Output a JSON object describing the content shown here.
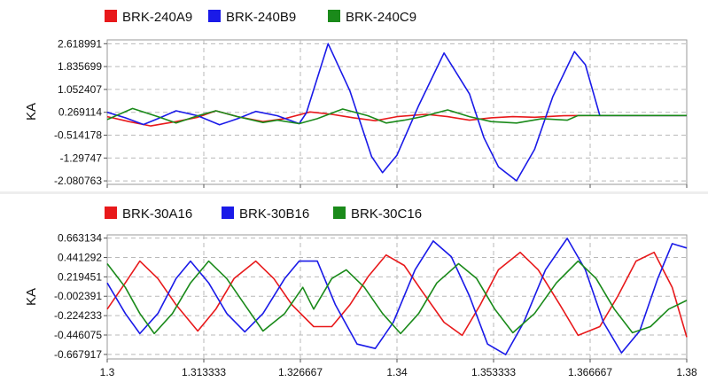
{
  "chart_data": [
    {
      "type": "line",
      "ylabel": "KA",
      "legend_placement": "top-left",
      "grid": true,
      "xlim": [
        1.3,
        1.38
      ],
      "ylim": [
        -2.2,
        2.75
      ],
      "yticks": [
        "2.618991",
        "1.835699",
        "1.052407",
        "0.269114",
        "-0.514178",
        "-1.29747",
        "-2.080763"
      ],
      "ytick_values": [
        2.618991,
        1.835699,
        1.052407,
        0.269114,
        -0.514178,
        -1.29747,
        -2.080763
      ],
      "series": [
        {
          "name": "BRK-240A9",
          "color": "#e8191b",
          "points": [
            [
              1.3,
              0.12
            ],
            [
              1.303,
              -0.05
            ],
            [
              1.306,
              -0.2
            ],
            [
              1.3095,
              -0.05
            ],
            [
              1.3125,
              0.1
            ],
            [
              1.315,
              0.32
            ],
            [
              1.318,
              0.12
            ],
            [
              1.3215,
              -0.05
            ],
            [
              1.3245,
              0.05
            ],
            [
              1.328,
              0.28
            ],
            [
              1.331,
              0.2
            ],
            [
              1.334,
              0.08
            ],
            [
              1.337,
              -0.02
            ],
            [
              1.34,
              0.12
            ],
            [
              1.344,
              0.2
            ],
            [
              1.347,
              0.12
            ],
            [
              1.35,
              0.0
            ],
            [
              1.353,
              0.08
            ],
            [
              1.356,
              0.12
            ],
            [
              1.359,
              0.1
            ],
            [
              1.363,
              0.15
            ],
            [
              1.366,
              0.16
            ],
            [
              1.37,
              0.16
            ],
            [
              1.38,
              0.16
            ]
          ]
        },
        {
          "name": "BRK-240B9",
          "color": "#1a1ae8",
          "points": [
            [
              1.3,
              0.27
            ],
            [
              1.3025,
              0.08
            ],
            [
              1.305,
              -0.15
            ],
            [
              1.307,
              0.05
            ],
            [
              1.3095,
              0.32
            ],
            [
              1.3125,
              0.15
            ],
            [
              1.3155,
              -0.16
            ],
            [
              1.318,
              0.05
            ],
            [
              1.3205,
              0.3
            ],
            [
              1.3235,
              0.15
            ],
            [
              1.3265,
              -0.12
            ],
            [
              1.3275,
              0.25
            ],
            [
              1.3305,
              2.619
            ],
            [
              1.3335,
              1.0
            ],
            [
              1.3365,
              -1.25
            ],
            [
              1.338,
              -1.8
            ],
            [
              1.34,
              -1.2
            ],
            [
              1.343,
              0.5
            ],
            [
              1.3465,
              2.3
            ],
            [
              1.35,
              0.9
            ],
            [
              1.352,
              -0.6
            ],
            [
              1.354,
              -1.6
            ],
            [
              1.3565,
              -2.08
            ],
            [
              1.359,
              -1.0
            ],
            [
              1.3615,
              0.8
            ],
            [
              1.3645,
              2.35
            ],
            [
              1.366,
              1.9
            ],
            [
              1.368,
              0.16
            ],
            [
              1.38,
              0.16
            ]
          ]
        },
        {
          "name": "BRK-240C9",
          "color": "#1a8a1a",
          "points": [
            [
              1.3,
              0.02
            ],
            [
              1.3035,
              0.4
            ],
            [
              1.307,
              0.12
            ],
            [
              1.3095,
              -0.1
            ],
            [
              1.3125,
              0.15
            ],
            [
              1.315,
              0.32
            ],
            [
              1.318,
              0.12
            ],
            [
              1.3215,
              -0.08
            ],
            [
              1.3235,
              0.0
            ],
            [
              1.3265,
              -0.12
            ],
            [
              1.329,
              0.05
            ],
            [
              1.3325,
              0.38
            ],
            [
              1.336,
              0.15
            ],
            [
              1.3385,
              -0.1
            ],
            [
              1.341,
              0.0
            ],
            [
              1.3435,
              0.12
            ],
            [
              1.347,
              0.35
            ],
            [
              1.35,
              0.12
            ],
            [
              1.353,
              -0.05
            ],
            [
              1.3565,
              -0.1
            ],
            [
              1.36,
              0.05
            ],
            [
              1.3635,
              0.0
            ],
            [
              1.365,
              0.16
            ],
            [
              1.38,
              0.16
            ]
          ]
        }
      ]
    },
    {
      "type": "line",
      "ylabel": "KA",
      "legend_placement": "top-left",
      "grid": true,
      "xlim": [
        1.3,
        1.38
      ],
      "ylim": [
        -0.72,
        0.7
      ],
      "yticks": [
        "0.663134",
        "0.441292",
        "0.219451",
        "-0.002391",
        "-0.224233",
        "-0.446075",
        "-0.667917"
      ],
      "ytick_values": [
        0.663134,
        0.441292,
        0.219451,
        -0.002391,
        -0.224233,
        -0.446075,
        -0.667917
      ],
      "xticks": [
        "1.3",
        "1.313333",
        "1.326667",
        "1.34",
        "1.353333",
        "1.366667",
        "1.38"
      ],
      "xtick_values": [
        1.3,
        1.313333,
        1.326667,
        1.34,
        1.353333,
        1.366667,
        1.38
      ],
      "series": [
        {
          "name": "BRK-30A16",
          "color": "#e8191b",
          "points": [
            [
              1.3,
              -0.15
            ],
            [
              1.3025,
              0.15
            ],
            [
              1.3045,
              0.4
            ],
            [
              1.307,
              0.2
            ],
            [
              1.3095,
              -0.1
            ],
            [
              1.3125,
              -0.4
            ],
            [
              1.315,
              -0.15
            ],
            [
              1.3175,
              0.2
            ],
            [
              1.3205,
              0.4
            ],
            [
              1.323,
              0.2
            ],
            [
              1.3255,
              -0.1
            ],
            [
              1.3285,
              -0.35
            ],
            [
              1.331,
              -0.35
            ],
            [
              1.3335,
              -0.1
            ],
            [
              1.336,
              0.22
            ],
            [
              1.3385,
              0.47
            ],
            [
              1.341,
              0.35
            ],
            [
              1.3435,
              0.05
            ],
            [
              1.3465,
              -0.3
            ],
            [
              1.349,
              -0.45
            ],
            [
              1.3515,
              -0.1
            ],
            [
              1.354,
              0.3
            ],
            [
              1.357,
              0.5
            ],
            [
              1.3595,
              0.3
            ],
            [
              1.3625,
              -0.1
            ],
            [
              1.365,
              -0.45
            ],
            [
              1.368,
              -0.35
            ],
            [
              1.3705,
              0.0
            ],
            [
              1.373,
              0.4
            ],
            [
              1.3755,
              0.5
            ],
            [
              1.378,
              0.1
            ],
            [
              1.38,
              -0.47
            ]
          ]
        },
        {
          "name": "BRK-30B16",
          "color": "#1a1ae8",
          "points": [
            [
              1.3,
              0.15
            ],
            [
              1.3025,
              -0.2
            ],
            [
              1.3045,
              -0.43
            ],
            [
              1.307,
              -0.2
            ],
            [
              1.3095,
              0.2
            ],
            [
              1.3115,
              0.4
            ],
            [
              1.314,
              0.15
            ],
            [
              1.3165,
              -0.2
            ],
            [
              1.319,
              -0.41
            ],
            [
              1.3215,
              -0.2
            ],
            [
              1.3245,
              0.2
            ],
            [
              1.3265,
              0.4
            ],
            [
              1.329,
              0.4
            ],
            [
              1.3315,
              -0.1
            ],
            [
              1.3345,
              -0.55
            ],
            [
              1.337,
              -0.6
            ],
            [
              1.3395,
              -0.3
            ],
            [
              1.3425,
              0.3
            ],
            [
              1.345,
              0.63
            ],
            [
              1.3475,
              0.45
            ],
            [
              1.35,
              0.0
            ],
            [
              1.3525,
              -0.55
            ],
            [
              1.355,
              -0.67
            ],
            [
              1.3575,
              -0.3
            ],
            [
              1.3605,
              0.3
            ],
            [
              1.3635,
              0.66
            ],
            [
              1.366,
              0.3
            ],
            [
              1.3685,
              -0.3
            ],
            [
              1.371,
              -0.65
            ],
            [
              1.3735,
              -0.4
            ],
            [
              1.376,
              0.2
            ],
            [
              1.378,
              0.6
            ],
            [
              1.38,
              0.55
            ]
          ]
        },
        {
          "name": "BRK-30C16",
          "color": "#1a8a1a",
          "points": [
            [
              1.3,
              0.37
            ],
            [
              1.3025,
              0.1
            ],
            [
              1.3045,
              -0.2
            ],
            [
              1.3065,
              -0.43
            ],
            [
              1.309,
              -0.2
            ],
            [
              1.3115,
              0.15
            ],
            [
              1.314,
              0.4
            ],
            [
              1.3165,
              0.2
            ],
            [
              1.319,
              -0.1
            ],
            [
              1.3215,
              -0.4
            ],
            [
              1.3245,
              -0.2
            ],
            [
              1.327,
              0.1
            ],
            [
              1.3285,
              -0.15
            ],
            [
              1.331,
              0.2
            ],
            [
              1.333,
              0.3
            ],
            [
              1.3355,
              0.1
            ],
            [
              1.338,
              -0.2
            ],
            [
              1.3405,
              -0.43
            ],
            [
              1.343,
              -0.2
            ],
            [
              1.3455,
              0.15
            ],
            [
              1.3485,
              0.37
            ],
            [
              1.351,
              0.2
            ],
            [
              1.3535,
              -0.15
            ],
            [
              1.356,
              -0.42
            ],
            [
              1.359,
              -0.2
            ],
            [
              1.362,
              0.15
            ],
            [
              1.365,
              0.4
            ],
            [
              1.3675,
              0.2
            ],
            [
              1.37,
              -0.15
            ],
            [
              1.3725,
              -0.42
            ],
            [
              1.375,
              -0.35
            ],
            [
              1.3775,
              -0.15
            ],
            [
              1.38,
              -0.05
            ]
          ]
        }
      ]
    }
  ]
}
